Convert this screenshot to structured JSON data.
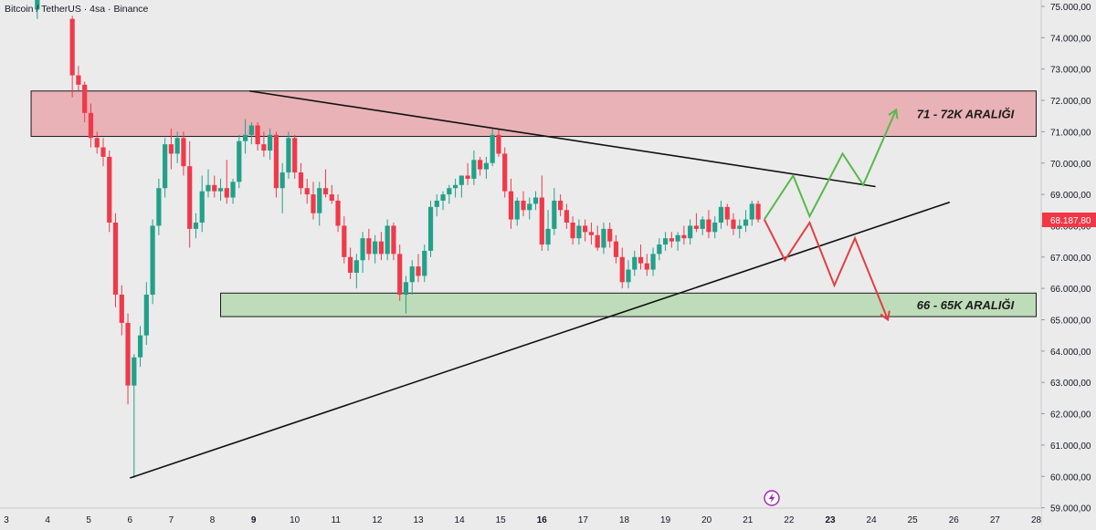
{
  "header": {
    "symbol_title": "Bitcoin / TetherUS · 4sa · Binance"
  },
  "colors": {
    "background": "#ebebeb",
    "up": "#22a08a",
    "down": "#f0394a",
    "resistance_zone": "#e8b2b6",
    "support_zone": "#bedcb9",
    "bull_path": "#58b84a",
    "bear_path": "#e23f45",
    "price_tag": "#f23645",
    "trendline": "#111111"
  },
  "chart_data": {
    "type": "candlestick",
    "title": "Bitcoin / TetherUS · 4sa · Binance",
    "y_axis": {
      "min": 59000,
      "max": 75300,
      "ticks": [
        75000,
        74000,
        73000,
        72000,
        71000,
        70000,
        69000,
        68000,
        67000,
        66000,
        65000,
        64000,
        63000,
        62000,
        61000,
        60000,
        59000
      ],
      "tick_labels": [
        "75.000,00",
        "74.000,00",
        "73.000,00",
        "72.000,00",
        "71.000,00",
        "70.000,00",
        "69.000,00",
        "68.000,00",
        "67.000,00",
        "66.000,00",
        "65.000,00",
        "64.000,00",
        "63.000,00",
        "62.000,00",
        "61.000,00",
        "60.000,00",
        "59.000,00"
      ]
    },
    "x_axis": {
      "min": 3,
      "max": 28.6,
      "ticks": [
        {
          "x": 3,
          "label": "3",
          "bold": false
        },
        {
          "x": 4,
          "label": "4",
          "bold": false
        },
        {
          "x": 5,
          "label": "5",
          "bold": false
        },
        {
          "x": 6,
          "label": "6",
          "bold": false
        },
        {
          "x": 7,
          "label": "7",
          "bold": false
        },
        {
          "x": 8,
          "label": "8",
          "bold": false
        },
        {
          "x": 9,
          "label": "9",
          "bold": true
        },
        {
          "x": 10,
          "label": "10",
          "bold": false
        },
        {
          "x": 11,
          "label": "11",
          "bold": false
        },
        {
          "x": 12,
          "label": "12",
          "bold": false
        },
        {
          "x": 13,
          "label": "13",
          "bold": false
        },
        {
          "x": 14,
          "label": "14",
          "bold": false
        },
        {
          "x": 15,
          "label": "15",
          "bold": false
        },
        {
          "x": 16,
          "label": "16",
          "bold": true
        },
        {
          "x": 17,
          "label": "17",
          "bold": false
        },
        {
          "x": 18,
          "label": "18",
          "bold": false
        },
        {
          "x": 19,
          "label": "19",
          "bold": false
        },
        {
          "x": 20,
          "label": "20",
          "bold": false
        },
        {
          "x": 21,
          "label": "21",
          "bold": false
        },
        {
          "x": 22,
          "label": "22",
          "bold": false
        },
        {
          "x": 23,
          "label": "23",
          "bold": true
        },
        {
          "x": 24,
          "label": "24",
          "bold": false
        },
        {
          "x": 25,
          "label": "25",
          "bold": false
        },
        {
          "x": 26,
          "label": "26",
          "bold": false
        },
        {
          "x": 27,
          "label": "27",
          "bold": false
        },
        {
          "x": 28,
          "label": "28",
          "bold": false
        }
      ]
    },
    "last_price": {
      "value": 68187.8,
      "label": "68.187,80"
    },
    "zones": [
      {
        "name": "resistance",
        "x_start": 3.6,
        "x_end": 28.0,
        "y_low": 70850,
        "y_high": 72300,
        "label": "71 - 72K ARALIĞI"
      },
      {
        "name": "support",
        "x_start": 8.2,
        "x_end": 28.0,
        "y_low": 65100,
        "y_high": 65850,
        "label": "66 - 65K ARALIĞI"
      }
    ],
    "trendlines": [
      {
        "name": "descending",
        "x1": 8.9,
        "y1": 72300,
        "x2": 24.1,
        "y2": 69250
      },
      {
        "name": "ascending",
        "x1": 6.0,
        "y1": 59950,
        "x2": 25.9,
        "y2": 68750
      }
    ],
    "projections": [
      {
        "name": "bullish",
        "points": [
          [
            21.4,
            68200
          ],
          [
            22.1,
            69600
          ],
          [
            22.5,
            68300
          ],
          [
            23.3,
            70300
          ],
          [
            23.8,
            69300
          ],
          [
            24.6,
            71700
          ]
        ]
      },
      {
        "name": "bearish",
        "points": [
          [
            21.4,
            68200
          ],
          [
            21.9,
            66900
          ],
          [
            22.5,
            68100
          ],
          [
            23.1,
            66100
          ],
          [
            23.6,
            67600
          ],
          [
            24.4,
            65000
          ]
        ]
      }
    ],
    "candles": [
      [
        3.75,
        74900,
        75300,
        74600,
        75300
      ],
      [
        4.6,
        74600,
        74700,
        72100,
        72800
      ],
      [
        4.75,
        72800,
        73100,
        72300,
        72500
      ],
      [
        4.9,
        72500,
        72600,
        71300,
        71600
      ],
      [
        5.05,
        71600,
        71900,
        70500,
        70800
      ],
      [
        5.2,
        70800,
        71000,
        70300,
        70500
      ],
      [
        5.35,
        70500,
        70800,
        69900,
        70200
      ],
      [
        5.5,
        70200,
        70400,
        67800,
        68100
      ],
      [
        5.65,
        68100,
        68400,
        65400,
        65800
      ],
      [
        5.8,
        65800,
        66100,
        64500,
        64900
      ],
      [
        5.95,
        64900,
        65200,
        62300,
        62900
      ],
      [
        6.1,
        62900,
        63900,
        59950,
        63800
      ],
      [
        6.25,
        63800,
        64800,
        63500,
        64500
      ],
      [
        6.4,
        64500,
        66200,
        64200,
        65800
      ],
      [
        6.55,
        65800,
        68200,
        65500,
        68000
      ],
      [
        6.7,
        68000,
        69500,
        67700,
        69200
      ],
      [
        6.85,
        69200,
        70800,
        68900,
        70600
      ],
      [
        7.0,
        70600,
        71100,
        69800,
        70300
      ],
      [
        7.15,
        70300,
        71000,
        70000,
        70800
      ],
      [
        7.3,
        70800,
        71000,
        69600,
        69900
      ],
      [
        7.45,
        69900,
        70700,
        67300,
        67900
      ],
      [
        7.6,
        67900,
        68400,
        67600,
        68100
      ],
      [
        7.75,
        68100,
        69600,
        67800,
        69100
      ],
      [
        7.9,
        69100,
        69800,
        68900,
        69300
      ],
      [
        8.05,
        69300,
        69600,
        68900,
        69100
      ],
      [
        8.2,
        69100,
        69500,
        68800,
        69200
      ],
      [
        8.35,
        69200,
        70100,
        68700,
        68900
      ],
      [
        8.5,
        68900,
        69500,
        68700,
        69400
      ],
      [
        8.65,
        69400,
        70900,
        69200,
        70700
      ],
      [
        8.8,
        70700,
        71400,
        70300,
        70900
      ],
      [
        8.95,
        70900,
        71300,
        70600,
        71200
      ],
      [
        9.1,
        71200,
        71300,
        70400,
        70600
      ],
      [
        9.25,
        70600,
        71000,
        70200,
        70400
      ],
      [
        9.4,
        70400,
        71100,
        70100,
        70900
      ],
      [
        9.55,
        70900,
        71000,
        68900,
        69200
      ],
      [
        9.7,
        69200,
        70000,
        68400,
        69700
      ],
      [
        9.85,
        69700,
        71000,
        69500,
        70800
      ],
      [
        10.0,
        70800,
        70900,
        69500,
        69700
      ],
      [
        10.15,
        69700,
        70000,
        69000,
        69200
      ],
      [
        10.3,
        69200,
        69500,
        68700,
        69000
      ],
      [
        10.45,
        69000,
        69400,
        68200,
        68400
      ],
      [
        10.6,
        68400,
        69400,
        68000,
        69200
      ],
      [
        10.75,
        69200,
        69800,
        68900,
        69000
      ],
      [
        10.9,
        69000,
        69300,
        68700,
        68800
      ],
      [
        11.05,
        68800,
        69000,
        67800,
        68000
      ],
      [
        11.2,
        68000,
        68300,
        66800,
        67000
      ],
      [
        11.35,
        67000,
        67300,
        66300,
        66500
      ],
      [
        11.5,
        66500,
        67100,
        66000,
        66900
      ],
      [
        11.65,
        66900,
        67800,
        66500,
        67600
      ],
      [
        11.8,
        67600,
        67900,
        66900,
        67100
      ],
      [
        11.95,
        67100,
        67700,
        66800,
        67500
      ],
      [
        12.1,
        67500,
        67800,
        66900,
        67100
      ],
      [
        12.25,
        67100,
        68200,
        66900,
        68000
      ],
      [
        12.4,
        68000,
        68100,
        66900,
        67100
      ],
      [
        12.55,
        67100,
        67400,
        65600,
        65800
      ],
      [
        12.7,
        65800,
        66400,
        65200,
        66200
      ],
      [
        12.85,
        66200,
        66900,
        65800,
        66700
      ],
      [
        13.0,
        66700,
        67100,
        66200,
        66400
      ],
      [
        13.15,
        66400,
        67400,
        66200,
        67200
      ],
      [
        13.3,
        67200,
        68800,
        67000,
        68600
      ],
      [
        13.45,
        68600,
        69000,
        68300,
        68800
      ],
      [
        13.6,
        68800,
        69100,
        68500,
        69000
      ],
      [
        13.75,
        69000,
        69300,
        68700,
        69200
      ],
      [
        13.9,
        69200,
        69500,
        68900,
        69300
      ],
      [
        14.05,
        69300,
        69600,
        68900,
        69600
      ],
      [
        14.2,
        69600,
        70000,
        69300,
        69500
      ],
      [
        14.35,
        69500,
        70400,
        69300,
        70100
      ],
      [
        14.5,
        70100,
        70200,
        69600,
        69800
      ],
      [
        14.65,
        69800,
        70200,
        69500,
        70000
      ],
      [
        14.8,
        70000,
        71100,
        69900,
        70900
      ],
      [
        14.95,
        70900,
        71100,
        70200,
        70300
      ],
      [
        15.1,
        70300,
        70500,
        68900,
        69100
      ],
      [
        15.25,
        69100,
        69500,
        67900,
        68200
      ],
      [
        15.4,
        68200,
        68900,
        68000,
        68800
      ],
      [
        15.55,
        68800,
        69100,
        68300,
        68500
      ],
      [
        15.7,
        68500,
        68900,
        68200,
        68700
      ],
      [
        15.85,
        68700,
        69100,
        68500,
        68900
      ],
      [
        16.0,
        68900,
        69600,
        67200,
        67400
      ],
      [
        16.15,
        67400,
        68500,
        67200,
        67900
      ],
      [
        16.3,
        67900,
        69200,
        67700,
        68800
      ],
      [
        16.45,
        68800,
        69000,
        68300,
        68500
      ],
      [
        16.6,
        68500,
        68700,
        67900,
        68100
      ],
      [
        16.75,
        68100,
        68300,
        67400,
        67600
      ],
      [
        16.9,
        67600,
        68200,
        67400,
        68000
      ],
      [
        17.05,
        68000,
        68200,
        67500,
        67800
      ],
      [
        17.2,
        67800,
        68100,
        67400,
        67700
      ],
      [
        17.35,
        67700,
        68000,
        67200,
        67300
      ],
      [
        17.5,
        67300,
        68100,
        67100,
        67900
      ],
      [
        17.65,
        67900,
        68100,
        67300,
        67500
      ],
      [
        17.8,
        67500,
        67700,
        66800,
        67000
      ],
      [
        17.95,
        67000,
        67300,
        66000,
        66200
      ],
      [
        18.1,
        66200,
        66900,
        66000,
        66600
      ],
      [
        18.25,
        66600,
        67200,
        66400,
        67000
      ],
      [
        18.4,
        67000,
        67400,
        66600,
        66800
      ],
      [
        18.55,
        66800,
        67100,
        66400,
        66600
      ],
      [
        18.7,
        66600,
        67300,
        66400,
        67100
      ],
      [
        18.85,
        67100,
        67600,
        66900,
        67400
      ],
      [
        19.0,
        67400,
        67800,
        67200,
        67600
      ],
      [
        19.15,
        67600,
        67800,
        67300,
        67500
      ],
      [
        19.3,
        67500,
        67800,
        67200,
        67700
      ],
      [
        19.45,
        67700,
        68000,
        67400,
        67600
      ],
      [
        19.6,
        67600,
        68200,
        67400,
        68000
      ],
      [
        19.75,
        68000,
        68400,
        67800,
        67900
      ],
      [
        19.9,
        67900,
        68300,
        67700,
        68200
      ],
      [
        20.05,
        68200,
        68500,
        67600,
        67800
      ],
      [
        20.2,
        67800,
        68300,
        67600,
        68100
      ],
      [
        20.35,
        68100,
        68800,
        67900,
        68600
      ],
      [
        20.5,
        68600,
        68700,
        68000,
        68200
      ],
      [
        20.65,
        68200,
        68400,
        67700,
        67900
      ],
      [
        20.8,
        67900,
        68200,
        67600,
        68000
      ],
      [
        20.95,
        68000,
        68500,
        67800,
        68200
      ],
      [
        21.1,
        68200,
        68800,
        68000,
        68700
      ],
      [
        21.25,
        68700,
        68800,
        68100,
        68200
      ]
    ]
  }
}
